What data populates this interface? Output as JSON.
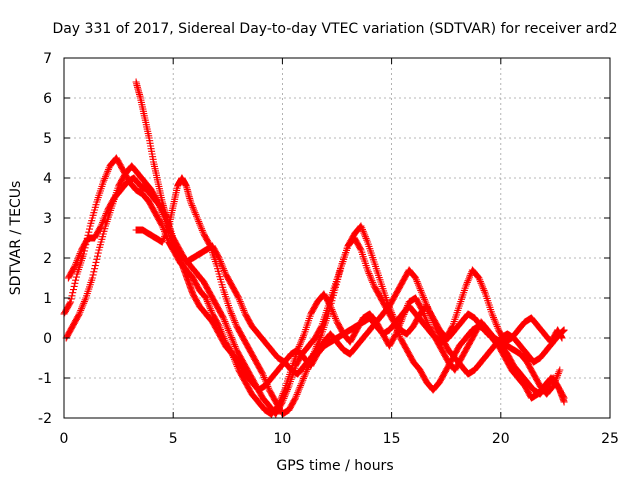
{
  "chart_data": {
    "type": "scatter",
    "title": "Day 331 of 2017, Sidereal Day-to-day VTEC variation (SDTVAR) for receiver ard2",
    "xlabel": "GPS time / hours",
    "ylabel": "SDTVAR / TECUs",
    "xlim": [
      0,
      25
    ],
    "ylim": [
      -2,
      7
    ],
    "xticks": [
      0,
      5,
      10,
      15,
      20,
      25
    ],
    "yticks": [
      -2,
      -1,
      0,
      1,
      2,
      3,
      4,
      5,
      6,
      7
    ],
    "xtick_labels": [
      "0",
      "5",
      "10",
      "15",
      "20",
      "25"
    ],
    "ytick_labels": [
      "-2",
      "-1",
      "0",
      "1",
      "2",
      "3",
      "4",
      "5",
      "6",
      "7"
    ],
    "grid": true,
    "marker": "+",
    "color": "#ff0000",
    "series": [
      {
        "name": "trace-1",
        "x": [
          0.0,
          0.3,
          0.6,
          0.9,
          1.2,
          1.5,
          1.8,
          2.1,
          2.4,
          2.7,
          3.0,
          3.3,
          3.6,
          3.9,
          4.2,
          4.5,
          4.8,
          5.0,
          5.3,
          5.6,
          5.9,
          6.2,
          6.5,
          6.8,
          7.1,
          7.4,
          7.7,
          8.0,
          8.3,
          8.6,
          8.9,
          9.2,
          9.5,
          9.8,
          10.1,
          10.4,
          10.7,
          11.0,
          11.3,
          11.6,
          11.9,
          12.2,
          12.5,
          12.8,
          13.1,
          13.4,
          13.7,
          14.0,
          14.3,
          14.6,
          14.9,
          15.2,
          15.5,
          15.8,
          16.1,
          16.4,
          16.7,
          17.0,
          17.3,
          17.6,
          17.9,
          18.2,
          18.5,
          18.8,
          19.1,
          19.4,
          19.7,
          20.0,
          20.3,
          20.6,
          20.9,
          21.2,
          21.5,
          21.8,
          22.1,
          22.4,
          22.7,
          22.9
        ],
        "y": [
          0.6,
          0.9,
          1.6,
          2.1,
          2.8,
          3.4,
          3.9,
          4.3,
          4.5,
          4.2,
          3.9,
          3.7,
          3.6,
          3.4,
          3.1,
          2.8,
          2.4,
          2.2,
          1.9,
          1.7,
          1.5,
          1.2,
          1.0,
          0.6,
          0.3,
          -0.1,
          -0.4,
          -0.8,
          -1.1,
          -1.4,
          -1.6,
          -1.8,
          -1.9,
          -1.7,
          -1.3,
          -0.8,
          -0.3,
          0.1,
          0.6,
          0.9,
          1.1,
          0.8,
          0.4,
          0.1,
          -0.1,
          0.2,
          0.5,
          0.6,
          0.4,
          0.1,
          -0.2,
          0.1,
          0.5,
          0.9,
          1.0,
          0.7,
          0.3,
          0.0,
          -0.3,
          -0.6,
          -0.8,
          -0.5,
          -0.2,
          0.1,
          0.4,
          0.2,
          0.0,
          -0.2,
          -0.4,
          -0.7,
          -0.9,
          -1.1,
          -1.3,
          -1.4,
          -1.2,
          -1.0,
          -1.3,
          -1.6
        ]
      },
      {
        "name": "trace-2",
        "x": [
          0.1,
          0.4,
          0.7,
          1.0,
          1.3,
          1.6,
          1.9,
          2.2,
          2.5,
          2.8,
          3.1,
          3.4,
          3.7,
          4.0,
          4.3,
          4.6,
          4.9,
          5.2,
          5.5,
          5.8,
          6.1,
          6.4,
          6.7,
          7.0,
          7.3,
          7.6,
          7.9,
          8.2,
          8.5,
          8.8,
          9.1,
          9.4,
          9.7,
          10.0,
          10.3,
          10.6,
          10.9,
          11.2,
          11.5,
          11.8,
          12.1,
          12.4,
          12.7,
          13.0,
          13.3,
          13.6,
          13.9,
          14.2,
          14.5,
          14.8,
          15.1,
          15.4,
          15.7,
          16.0,
          16.3,
          16.6,
          16.9,
          17.2,
          17.5,
          17.8,
          18.1,
          18.4,
          18.7,
          19.0,
          19.3,
          19.6,
          19.9,
          20.2,
          20.5,
          20.8,
          21.1,
          21.4,
          21.7,
          22.0,
          22.3,
          22.6,
          22.8
        ],
        "y": [
          0.0,
          0.3,
          0.6,
          1.0,
          1.5,
          2.2,
          2.8,
          3.3,
          3.8,
          4.1,
          4.3,
          4.1,
          3.9,
          3.7,
          3.4,
          3.0,
          2.6,
          2.2,
          2.0,
          1.8,
          1.6,
          1.4,
          1.1,
          0.8,
          0.5,
          0.1,
          -0.3,
          -0.6,
          -0.9,
          -1.2,
          -1.5,
          -1.7,
          -1.9,
          -1.6,
          -1.2,
          -0.7,
          -0.4,
          -0.2,
          0.0,
          0.3,
          0.8,
          1.3,
          1.8,
          2.3,
          2.6,
          2.8,
          2.4,
          1.9,
          1.4,
          0.9,
          0.5,
          0.2,
          0.1,
          0.3,
          0.6,
          0.8,
          0.5,
          0.2,
          0.0,
          0.3,
          0.8,
          1.3,
          1.7,
          1.5,
          1.1,
          0.6,
          0.2,
          -0.1,
          0.0,
          0.2,
          0.4,
          0.5,
          0.3,
          0.1,
          -0.1,
          0.2,
          0.0
        ]
      },
      {
        "name": "trace-3",
        "x": [
          0.2,
          0.5,
          0.8,
          1.1,
          1.4,
          1.7,
          2.0,
          2.3,
          2.6,
          2.9,
          3.2,
          3.5,
          3.8,
          4.1,
          4.4,
          4.7,
          5.0,
          5.3,
          5.6,
          5.9,
          6.2,
          6.5,
          6.8,
          7.1,
          7.4,
          7.7,
          8.0,
          8.3,
          8.6,
          8.9,
          9.2,
          9.5,
          9.8,
          10.1,
          10.4,
          10.7,
          11.0,
          11.3,
          11.6,
          11.9,
          12.2,
          12.5,
          12.8,
          13.1,
          13.4,
          13.7,
          14.0,
          14.3,
          14.6,
          14.9,
          15.2,
          15.5,
          15.8,
          16.1,
          16.4,
          16.7,
          17.0,
          17.3,
          17.6,
          17.9,
          18.2,
          18.5,
          18.8,
          19.1,
          19.4,
          19.7,
          20.0,
          20.3,
          20.6,
          20.9,
          21.2,
          21.5,
          21.8,
          22.1,
          22.4,
          22.7,
          22.9
        ],
        "y": [
          1.5,
          1.8,
          2.2,
          2.5,
          2.5,
          2.8,
          3.2,
          3.5,
          3.7,
          3.9,
          4.0,
          3.8,
          3.7,
          3.5,
          3.3,
          3.0,
          2.5,
          2.2,
          1.9,
          2.0,
          2.1,
          2.2,
          2.3,
          2.0,
          1.6,
          1.3,
          1.0,
          0.6,
          0.3,
          0.1,
          -0.1,
          -0.3,
          -0.5,
          -0.6,
          -0.8,
          -0.9,
          -0.7,
          -0.5,
          -0.3,
          -0.1,
          0.1,
          -0.1,
          -0.3,
          -0.4,
          -0.2,
          0.0,
          0.2,
          0.4,
          0.6,
          0.8,
          1.1,
          1.4,
          1.7,
          1.5,
          1.1,
          0.7,
          0.3,
          0.0,
          -0.3,
          -0.5,
          -0.7,
          -0.9,
          -0.8,
          -0.6,
          -0.4,
          -0.2,
          0.0,
          0.1,
          0.0,
          -0.2,
          -0.4,
          -0.6,
          -0.5,
          -0.3,
          -0.1,
          0.1,
          0.2
        ]
      },
      {
        "name": "trace-4",
        "x": [
          3.3,
          3.5,
          3.7,
          3.9,
          4.1,
          4.3,
          4.5,
          4.7,
          4.9,
          5.1,
          5.3,
          5.5,
          5.7,
          5.9,
          6.2,
          6.5,
          6.8,
          7.1,
          7.4,
          7.7,
          8.0,
          8.3,
          8.6,
          8.9,
          9.2,
          9.5,
          9.8,
          10.1,
          10.4,
          10.7,
          11.0,
          11.3,
          11.6,
          11.9,
          12.2,
          12.5,
          12.8,
          13.1,
          13.4,
          13.7,
          14.0,
          14.3,
          14.6,
          14.9,
          15.2,
          15.5,
          15.8,
          16.1,
          16.4,
          16.7,
          17.0,
          17.3,
          17.6,
          17.9,
          18.2,
          18.5,
          18.8,
          19.1,
          19.4,
          19.7,
          20.0,
          20.3,
          20.6,
          20.9,
          21.2,
          21.5,
          21.8,
          22.1,
          22.4,
          22.7
        ],
        "y": [
          6.4,
          6.0,
          5.5,
          5.0,
          4.4,
          3.9,
          3.4,
          3.0,
          2.6,
          2.3,
          2.0,
          1.7,
          1.4,
          1.1,
          0.8,
          0.6,
          0.4,
          0.1,
          -0.2,
          -0.4,
          -0.6,
          -0.9,
          -1.1,
          -1.3,
          -1.2,
          -1.0,
          -0.8,
          -0.6,
          -0.4,
          -0.3,
          -0.5,
          -0.7,
          -0.4,
          -0.2,
          -0.1,
          0.0,
          0.1,
          0.2,
          0.3,
          0.4,
          0.5,
          0.3,
          0.1,
          0.2,
          0.4,
          0.6,
          0.8,
          0.6,
          0.4,
          0.2,
          0.0,
          -0.1,
          0.0,
          0.2,
          0.4,
          0.6,
          0.5,
          0.3,
          0.1,
          0.0,
          -0.1,
          -0.2,
          -0.3,
          -0.4,
          -0.6,
          -0.9,
          -1.2,
          -1.4,
          -1.2,
          -0.8
        ]
      },
      {
        "name": "trace-5",
        "x": [
          3.3,
          3.6,
          3.9,
          4.2,
          4.5,
          4.8,
          5.0,
          5.2,
          5.4,
          5.6,
          5.8,
          6.1,
          6.4,
          6.7,
          7.0,
          7.3,
          7.6,
          7.9,
          8.2,
          8.5,
          8.8,
          9.1,
          9.4,
          9.7,
          10.0,
          10.3,
          10.6,
          10.9,
          11.2,
          11.5,
          11.8,
          12.1,
          12.4,
          12.7,
          13.0,
          13.3,
          13.6,
          13.9,
          14.2,
          14.5,
          14.8,
          15.1,
          15.4,
          15.7,
          16.0,
          16.3,
          16.6,
          16.9,
          17.2,
          17.5,
          17.8,
          18.1,
          18.4,
          18.7,
          19.0,
          19.3,
          19.6,
          19.9,
          20.2,
          20.5,
          20.8,
          21.1,
          21.4,
          21.7,
          22.0,
          22.3,
          22.6,
          22.9
        ],
        "y": [
          2.7,
          2.7,
          2.6,
          2.5,
          2.4,
          2.8,
          3.3,
          3.8,
          4.0,
          3.8,
          3.4,
          3.0,
          2.6,
          2.3,
          1.8,
          1.2,
          0.7,
          0.3,
          0.0,
          -0.3,
          -0.6,
          -0.9,
          -1.3,
          -1.6,
          -1.9,
          -1.8,
          -1.5,
          -1.1,
          -0.7,
          -0.3,
          0.1,
          0.6,
          1.2,
          1.8,
          2.3,
          2.5,
          2.2,
          1.7,
          1.3,
          1.0,
          0.7,
          0.4,
          0.0,
          -0.3,
          -0.6,
          -0.8,
          -1.1,
          -1.3,
          -1.1,
          -0.8,
          -0.5,
          -0.2,
          0.0,
          0.2,
          0.3,
          0.2,
          0.0,
          -0.2,
          -0.5,
          -0.8,
          -1.0,
          -1.2,
          -1.5,
          -1.4,
          -1.2,
          -1.0,
          -1.2,
          -1.5
        ]
      }
    ]
  }
}
